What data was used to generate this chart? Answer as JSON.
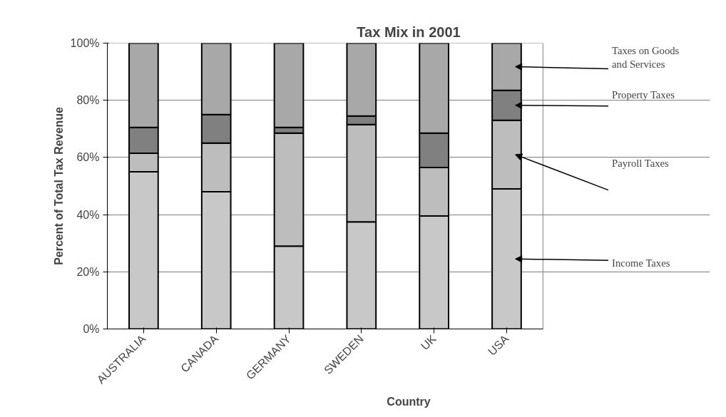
{
  "chart_data": {
    "type": "bar",
    "stacked": true,
    "title": "Tax Mix in 2001",
    "xlabel": "Country",
    "ylabel": "Percent of Total Tax Revenue",
    "categories": [
      "AUSTRALIA",
      "CANADA",
      "GERMANY",
      "SWEDEN",
      "UK",
      "USA"
    ],
    "series": [
      {
        "name": "Income Taxes",
        "color": "#c8c8c8",
        "values": [
          55,
          48,
          29,
          37.5,
          39.5,
          49
        ]
      },
      {
        "name": "Payroll Taxes",
        "color": "#bdbdbd",
        "values": [
          6.5,
          17,
          39.5,
          34,
          17,
          24
        ]
      },
      {
        "name": "Property Taxes",
        "color": "#808080",
        "values": [
          9,
          10,
          2,
          3,
          12,
          10.5
        ]
      },
      {
        "name": "Taxes on Goods and Services",
        "color": "#a8a8a8",
        "values": [
          29.5,
          25,
          29.5,
          25.5,
          31.5,
          16.5
        ]
      }
    ],
    "ylim": [
      0,
      100
    ],
    "yticks": [
      {
        "value": 0,
        "label": "0%"
      },
      {
        "value": 20,
        "label": "20%"
      },
      {
        "value": 40,
        "label": "40%"
      },
      {
        "value": 60,
        "label": "60%"
      },
      {
        "value": 80,
        "label": "80%"
      },
      {
        "value": 100,
        "label": "100%"
      }
    ],
    "grid": "y"
  }
}
